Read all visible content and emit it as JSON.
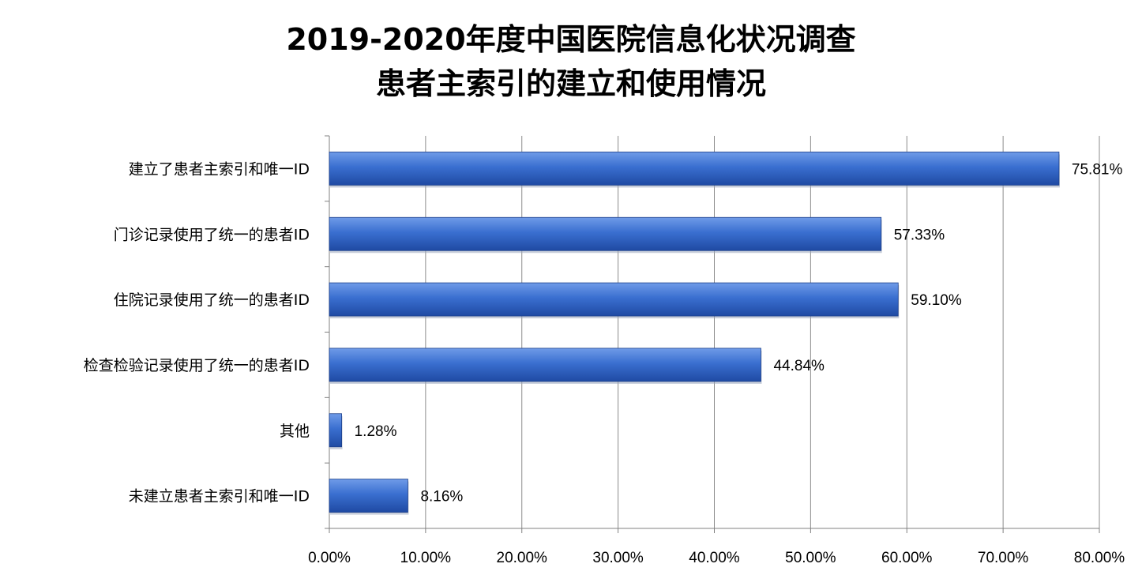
{
  "chart_data": {
    "type": "bar",
    "orientation": "horizontal",
    "title_lines": [
      "2019-2020年度中国医院信息化状况调查",
      "患者主索引的建立和使用情况"
    ],
    "categories": [
      "建立了患者主索引和唯一ID",
      "门诊记录使用了统一的患者ID",
      "住院记录使用了统一的患者ID",
      "检查检验记录使用了统一的患者ID",
      "其他",
      "未建立患者主索引和唯一ID"
    ],
    "values": [
      75.81,
      57.33,
      59.1,
      44.84,
      1.28,
      8.16
    ],
    "value_labels": [
      "75.81%",
      "57.33%",
      "59.10%",
      "44.84%",
      "1.28%",
      "8.16%"
    ],
    "x_ticks": [
      "0.00%",
      "10.00%",
      "20.00%",
      "30.00%",
      "40.00%",
      "50.00%",
      "60.00%",
      "70.00%",
      "80.00%"
    ],
    "xlim": [
      0,
      80
    ],
    "grid": true,
    "legend": "none",
    "colors": {
      "bar_light": "#6f9be8",
      "bar_mid": "#3a6fd0",
      "bar_dark": "#1f4aa3",
      "grid": "#8c8c8c",
      "axis": "#808080"
    }
  }
}
